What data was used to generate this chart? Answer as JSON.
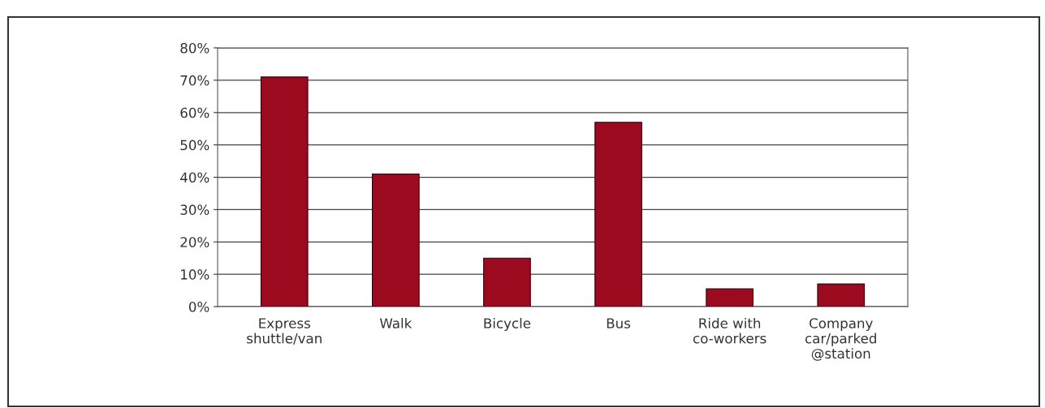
{
  "chart_data": {
    "type": "bar",
    "categories": [
      "Express\nshuttle/van",
      "Walk",
      "Bicycle",
      "Bus",
      "Ride with\nco-workers",
      "Company\ncar/parked\n@station"
    ],
    "values": [
      71,
      41,
      15,
      57,
      5.5,
      7
    ],
    "color": "#9b0a1e",
    "ylim": [
      0,
      80
    ],
    "yticks": [
      {
        "value": 0,
        "label": "0%"
      },
      {
        "value": 10,
        "label": "10%"
      },
      {
        "value": 20,
        "label": "20%"
      },
      {
        "value": 30,
        "label": "30%"
      },
      {
        "value": 40,
        "label": "40%"
      },
      {
        "value": 50,
        "label": "50%"
      },
      {
        "value": 60,
        "label": "60%"
      },
      {
        "value": 70,
        "label": "70%"
      },
      {
        "value": 80,
        "label": "80%"
      }
    ],
    "grid": "y",
    "legend": false
  }
}
